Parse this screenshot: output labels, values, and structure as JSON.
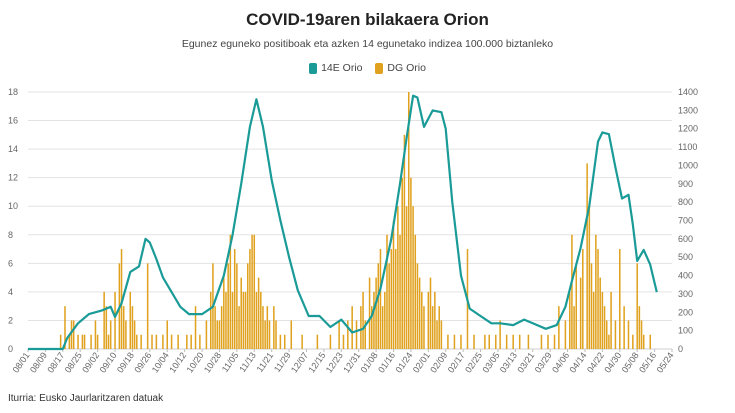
{
  "title": "COVID-19aren bilakaera Orion",
  "subtitle": "Egunez eguneko positiboak eta azken 14 egunetako indizea 100.000 biztanleko",
  "source": "Iturria: Eusko Jaurlaritzaren datuak",
  "colors": {
    "line": "#1a9b98",
    "bars": "#e0a21e"
  },
  "chart_data": {
    "type": "bar",
    "grid": true,
    "legend_position": "top-center",
    "x_ticks": [
      "08/01",
      "08/09",
      "08/17",
      "08/25",
      "09/02",
      "09/10",
      "09/18",
      "09/26",
      "10/04",
      "10/12",
      "10/20",
      "10/28",
      "11/05",
      "11/13",
      "11/21",
      "11/29",
      "12/07",
      "12/15",
      "12/23",
      "12/31",
      "01/08",
      "01/16",
      "01/24",
      "02/01",
      "02/09",
      "02/17",
      "02/25",
      "03/05",
      "03/13",
      "03/21",
      "03/29",
      "04/06",
      "04/14",
      "04/22",
      "04/30",
      "05/08",
      "05/16",
      "05/24"
    ],
    "y_left": {
      "ylim": [
        0,
        18
      ],
      "ticks": [
        0,
        2,
        4,
        6,
        8,
        10,
        12,
        14,
        16,
        18
      ]
    },
    "y_right": {
      "ylim": [
        0,
        1400
      ],
      "ticks": [
        0,
        100,
        200,
        300,
        400,
        500,
        600,
        700,
        800,
        900,
        1000,
        1100,
        1200,
        1300,
        1400
      ]
    },
    "series": [
      {
        "name": "14E Orio",
        "axis": "right",
        "type": "line",
        "points": [
          [
            "08/01",
            0
          ],
          [
            "08/17",
            0
          ],
          [
            "08/19",
            60
          ],
          [
            "08/24",
            140
          ],
          [
            "08/29",
            190
          ],
          [
            "09/04",
            210
          ],
          [
            "09/08",
            230
          ],
          [
            "09/10",
            175
          ],
          [
            "09/13",
            250
          ],
          [
            "09/17",
            420
          ],
          [
            "09/21",
            450
          ],
          [
            "09/24",
            600
          ],
          [
            "09/26",
            580
          ],
          [
            "09/29",
            490
          ],
          [
            "10/02",
            390
          ],
          [
            "10/06",
            310
          ],
          [
            "10/10",
            230
          ],
          [
            "10/14",
            190
          ],
          [
            "10/20",
            190
          ],
          [
            "10/25",
            230
          ],
          [
            "10/30",
            400
          ],
          [
            "11/03",
            620
          ],
          [
            "11/07",
            900
          ],
          [
            "11/11",
            1210
          ],
          [
            "11/14",
            1360
          ],
          [
            "11/17",
            1210
          ],
          [
            "11/21",
            920
          ],
          [
            "11/25",
            700
          ],
          [
            "11/29",
            500
          ],
          [
            "12/03",
            320
          ],
          [
            "12/08",
            180
          ],
          [
            "12/13",
            180
          ],
          [
            "12/18",
            120
          ],
          [
            "12/23",
            160
          ],
          [
            "12/28",
            90
          ],
          [
            "01/02",
            110
          ],
          [
            "01/06",
            180
          ],
          [
            "01/10",
            330
          ],
          [
            "01/15",
            600
          ],
          [
            "01/19",
            900
          ],
          [
            "01/22",
            1150
          ],
          [
            "01/25",
            1380
          ],
          [
            "01/27",
            1370
          ],
          [
            "01/30",
            1210
          ],
          [
            "02/03",
            1300
          ],
          [
            "02/07",
            1290
          ],
          [
            "02/09",
            1200
          ],
          [
            "02/12",
            800
          ],
          [
            "02/16",
            400
          ],
          [
            "02/20",
            220
          ],
          [
            "02/25",
            180
          ],
          [
            "03/02",
            140
          ],
          [
            "03/06",
            140
          ],
          [
            "03/12",
            130
          ],
          [
            "03/17",
            160
          ],
          [
            "03/21",
            140
          ],
          [
            "03/27",
            110
          ],
          [
            "04/01",
            130
          ],
          [
            "04/05",
            230
          ],
          [
            "04/08",
            370
          ],
          [
            "04/12",
            550
          ],
          [
            "04/16",
            780
          ],
          [
            "04/20",
            1130
          ],
          [
            "04/22",
            1180
          ],
          [
            "04/25",
            1170
          ],
          [
            "04/28",
            990
          ],
          [
            "05/01",
            820
          ],
          [
            "05/04",
            840
          ],
          [
            "05/06",
            680
          ],
          [
            "05/08",
            480
          ],
          [
            "05/11",
            540
          ],
          [
            "05/14",
            460
          ],
          [
            "05/17",
            310
          ]
        ]
      },
      {
        "name": "DG Orio",
        "axis": "left",
        "type": "bar",
        "points": [
          [
            "08/16",
            1
          ],
          [
            "08/18",
            3
          ],
          [
            "08/20",
            1
          ],
          [
            "08/21",
            2
          ],
          [
            "08/22",
            2
          ],
          [
            "08/24",
            1
          ],
          [
            "08/26",
            1
          ],
          [
            "08/27",
            1
          ],
          [
            "08/30",
            1
          ],
          [
            "09/01",
            2
          ],
          [
            "09/02",
            1
          ],
          [
            "09/05",
            4
          ],
          [
            "09/06",
            3
          ],
          [
            "09/07",
            1
          ],
          [
            "09/08",
            2
          ],
          [
            "09/10",
            4
          ],
          [
            "09/12",
            6
          ],
          [
            "09/13",
            7
          ],
          [
            "09/14",
            3
          ],
          [
            "09/15",
            2
          ],
          [
            "09/17",
            4
          ],
          [
            "09/18",
            3
          ],
          [
            "09/19",
            2
          ],
          [
            "09/20",
            1
          ],
          [
            "09/22",
            1
          ],
          [
            "09/25",
            6
          ],
          [
            "09/27",
            1
          ],
          [
            "09/29",
            1
          ],
          [
            "10/02",
            1
          ],
          [
            "10/04",
            2
          ],
          [
            "10/06",
            1
          ],
          [
            "10/09",
            1
          ],
          [
            "10/13",
            1
          ],
          [
            "10/15",
            1
          ],
          [
            "10/17",
            3
          ],
          [
            "10/19",
            1
          ],
          [
            "10/22",
            2
          ],
          [
            "10/24",
            4
          ],
          [
            "10/25",
            6
          ],
          [
            "10/26",
            3
          ],
          [
            "10/27",
            2
          ],
          [
            "10/28",
            2
          ],
          [
            "10/29",
            3
          ],
          [
            "10/30",
            5
          ],
          [
            "10/31",
            4
          ],
          [
            "11/01",
            6
          ],
          [
            "11/02",
            8
          ],
          [
            "11/03",
            4
          ],
          [
            "11/04",
            7
          ],
          [
            "11/05",
            6
          ],
          [
            "11/06",
            3
          ],
          [
            "11/07",
            5
          ],
          [
            "11/08",
            4
          ],
          [
            "11/09",
            4
          ],
          [
            "11/10",
            6
          ],
          [
            "11/11",
            7
          ],
          [
            "11/12",
            8
          ],
          [
            "11/13",
            8
          ],
          [
            "11/14",
            4
          ],
          [
            "11/15",
            5
          ],
          [
            "11/16",
            4
          ],
          [
            "11/17",
            3
          ],
          [
            "11/18",
            2
          ],
          [
            "11/19",
            3
          ],
          [
            "11/20",
            2
          ],
          [
            "11/22",
            3
          ],
          [
            "11/23",
            2
          ],
          [
            "11/25",
            1
          ],
          [
            "11/27",
            1
          ],
          [
            "11/30",
            2
          ],
          [
            "12/05",
            1
          ],
          [
            "12/12",
            1
          ],
          [
            "12/18",
            1
          ],
          [
            "12/22",
            2
          ],
          [
            "12/24",
            1
          ],
          [
            "12/26",
            2
          ],
          [
            "12/28",
            3
          ],
          [
            "12/30",
            2
          ],
          [
            "01/01",
            3
          ],
          [
            "01/02",
            4
          ],
          [
            "01/03",
            2
          ],
          [
            "01/05",
            5
          ],
          [
            "01/06",
            3
          ],
          [
            "01/07",
            4
          ],
          [
            "01/08",
            5
          ],
          [
            "01/09",
            6
          ],
          [
            "01/10",
            7
          ],
          [
            "01/11",
            3
          ],
          [
            "01/12",
            4
          ],
          [
            "01/13",
            8
          ],
          [
            "01/14",
            6
          ],
          [
            "01/15",
            7
          ],
          [
            "01/16",
            9
          ],
          [
            "01/17",
            7
          ],
          [
            "01/18",
            10
          ],
          [
            "01/19",
            8
          ],
          [
            "01/20",
            12
          ],
          [
            "01/21",
            15
          ],
          [
            "01/22",
            10
          ],
          [
            "01/23",
            18
          ],
          [
            "01/24",
            12
          ],
          [
            "01/25",
            10
          ],
          [
            "01/26",
            8
          ],
          [
            "01/27",
            6
          ],
          [
            "01/28",
            5
          ],
          [
            "01/29",
            4
          ],
          [
            "01/30",
            3
          ],
          [
            "02/01",
            4
          ],
          [
            "02/02",
            5
          ],
          [
            "02/03",
            3
          ],
          [
            "02/04",
            4
          ],
          [
            "02/05",
            2
          ],
          [
            "02/06",
            3
          ],
          [
            "02/07",
            2
          ],
          [
            "02/10",
            1
          ],
          [
            "02/13",
            1
          ],
          [
            "02/16",
            1
          ],
          [
            "02/19",
            7
          ],
          [
            "02/22",
            1
          ],
          [
            "02/27",
            1
          ],
          [
            "03/01",
            1
          ],
          [
            "03/04",
            1
          ],
          [
            "03/06",
            2
          ],
          [
            "03/09",
            1
          ],
          [
            "03/12",
            1
          ],
          [
            "03/15",
            1
          ],
          [
            "03/19",
            1
          ],
          [
            "03/25",
            1
          ],
          [
            "03/28",
            1
          ],
          [
            "03/31",
            1
          ],
          [
            "04/02",
            3
          ],
          [
            "04/05",
            2
          ],
          [
            "04/07",
            4
          ],
          [
            "04/08",
            8
          ],
          [
            "04/09",
            3
          ],
          [
            "04/10",
            6
          ],
          [
            "04/12",
            5
          ],
          [
            "04/13",
            7
          ],
          [
            "04/15",
            13
          ],
          [
            "04/16",
            10
          ],
          [
            "04/17",
            6
          ],
          [
            "04/18",
            4
          ],
          [
            "04/19",
            8
          ],
          [
            "04/20",
            7
          ],
          [
            "04/21",
            5
          ],
          [
            "04/22",
            4
          ],
          [
            "04/23",
            3
          ],
          [
            "04/24",
            2
          ],
          [
            "04/25",
            1
          ],
          [
            "04/26",
            4
          ],
          [
            "04/28",
            2
          ],
          [
            "04/30",
            7
          ],
          [
            "05/02",
            3
          ],
          [
            "05/04",
            2
          ],
          [
            "05/06",
            1
          ],
          [
            "05/08",
            6
          ],
          [
            "05/09",
            3
          ],
          [
            "05/10",
            2
          ],
          [
            "05/11",
            1
          ],
          [
            "05/14",
            1
          ]
        ]
      }
    ]
  }
}
